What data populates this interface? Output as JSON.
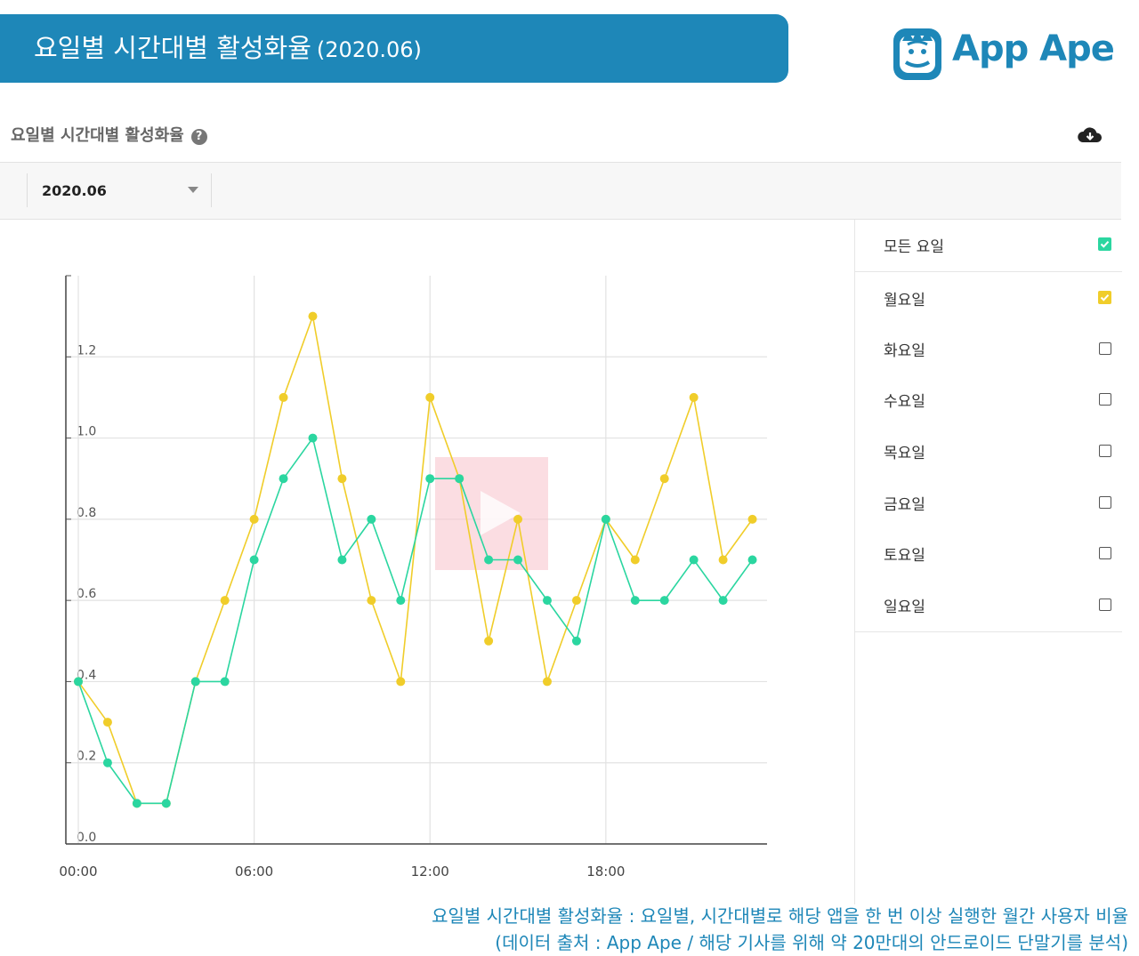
{
  "header": {
    "title": "요일별 시간대별 활성화율",
    "subtitle": "(2020.06)",
    "logo_text": "App Ape"
  },
  "panel": {
    "title": "요일별 시간대별 활성화율",
    "help_icon": "question-circle-icon",
    "download_icon": "cloud-download-icon"
  },
  "filter": {
    "selected_month": "2020.06"
  },
  "legend": {
    "items": [
      {
        "label": "모든 요일",
        "checked": true,
        "color": "#2bd6a0"
      },
      {
        "label": "월요일",
        "checked": true,
        "color": "#f0cd2a"
      },
      {
        "label": "화요일",
        "checked": false
      },
      {
        "label": "수요일",
        "checked": false
      },
      {
        "label": "목요일",
        "checked": false
      },
      {
        "label": "금요일",
        "checked": false
      },
      {
        "label": "토요일",
        "checked": false
      },
      {
        "label": "일요일",
        "checked": false
      }
    ]
  },
  "chart_data": {
    "type": "line",
    "title": "",
    "xlabel": "",
    "ylabel": "",
    "x": [
      0,
      1,
      2,
      3,
      4,
      5,
      6,
      7,
      8,
      9,
      10,
      11,
      12,
      13,
      14,
      15,
      16,
      17,
      18,
      19,
      20,
      21,
      22,
      23
    ],
    "x_ticks": [
      0,
      6,
      12,
      18
    ],
    "x_tick_labels": [
      "00:00",
      "06:00",
      "12:00",
      "18:00"
    ],
    "xlim": [
      0,
      23.5
    ],
    "ylim": [
      0,
      1.4
    ],
    "y_ticks": [
      0.0,
      0.2,
      0.4,
      0.6,
      0.8,
      1.0,
      1.2
    ],
    "y_tick_labels": [
      "0.0",
      "0.2",
      "0.4",
      "0.6",
      "0.8",
      "1.0",
      "1.2"
    ],
    "grid": true,
    "series": [
      {
        "name": "모든 요일",
        "color": "#2bd6a0",
        "values": [
          0.4,
          0.2,
          0.1,
          0.1,
          0.4,
          0.4,
          0.7,
          0.9,
          1.0,
          0.7,
          0.8,
          0.6,
          0.9,
          0.9,
          0.7,
          0.7,
          0.6,
          0.5,
          0.8,
          0.6,
          0.6,
          0.7,
          0.6,
          0.7
        ]
      },
      {
        "name": "월요일",
        "color": "#f0cd2a",
        "values": [
          0.4,
          0.3,
          0.1,
          0.1,
          0.4,
          0.6,
          0.8,
          1.1,
          1.3,
          0.9,
          0.6,
          0.4,
          1.1,
          0.9,
          0.5,
          0.8,
          0.4,
          0.6,
          0.8,
          0.7,
          0.9,
          1.1,
          0.7,
          0.8
        ]
      }
    ]
  },
  "footnote": {
    "line1": "요일별 시간대별 활성화율 : 요일별, 시간대별로 해당 앱을 한 번 이상 실행한 월간 사용자 비율",
    "line2": "(데이터 출처 : App Ape / 해당 기사를 위해 약 20만대의 안드로이드 단말기를 분석)"
  }
}
